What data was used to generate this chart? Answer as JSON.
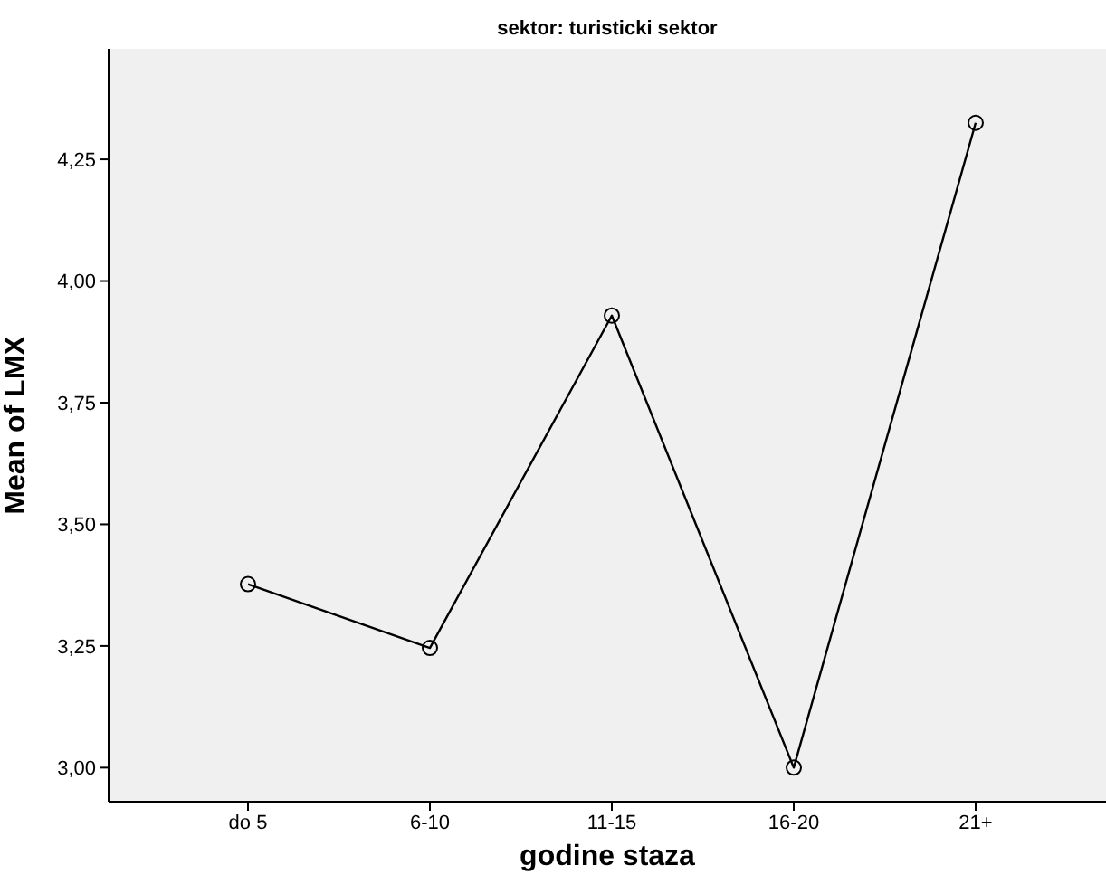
{
  "chart_data": {
    "type": "line",
    "title": "sektor: turisticki sektor",
    "xlabel": "godine staza",
    "ylabel": "Mean of LMX",
    "categories": [
      "do 5",
      "6-10",
      "11-15",
      "16-20",
      "21+"
    ],
    "series": [
      {
        "color": "#000000",
        "values": [
          3.377,
          3.246,
          3.929,
          3.0,
          4.325
        ]
      }
    ],
    "ylim": [
      2.93,
      4.477
    ],
    "yticks": [
      {
        "value": 3,
        "label": "3,00"
      },
      {
        "value": 3.25,
        "label": "3,25"
      },
      {
        "value": 3.5,
        "label": "3,50"
      },
      {
        "value": 3.75,
        "label": "3,75"
      },
      {
        "value": 4,
        "label": "4,00"
      },
      {
        "value": 4.25,
        "label": "4,25"
      }
    ],
    "marker": "circle",
    "line_style": "solid",
    "grid": false,
    "legend": false
  }
}
